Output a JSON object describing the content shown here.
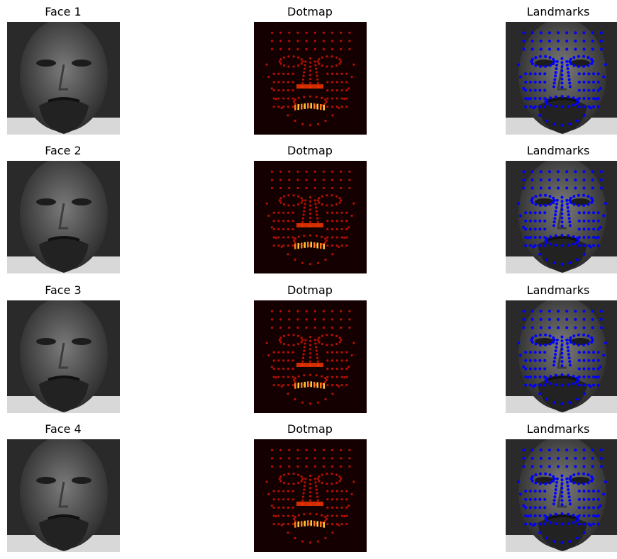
{
  "figure": {
    "rows": [
      {
        "face_title": "Face 1",
        "dotmap_title": "Dotmap",
        "landmarks_title": "Landmarks"
      },
      {
        "face_title": "Face 2",
        "dotmap_title": "Dotmap",
        "landmarks_title": "Landmarks"
      },
      {
        "face_title": "Face 3",
        "dotmap_title": "Dotmap",
        "landmarks_title": "Landmarks"
      },
      {
        "face_title": "Face 4",
        "dotmap_title": "Dotmap",
        "landmarks_title": "Landmarks"
      }
    ]
  },
  "colors": {
    "dotmap_background": "#140000",
    "dotmap_dot": "#b31000",
    "dotmap_hot": "#ffcc33",
    "landmark_dot": "#0000ff",
    "face_gray": "#5a5a5a"
  }
}
